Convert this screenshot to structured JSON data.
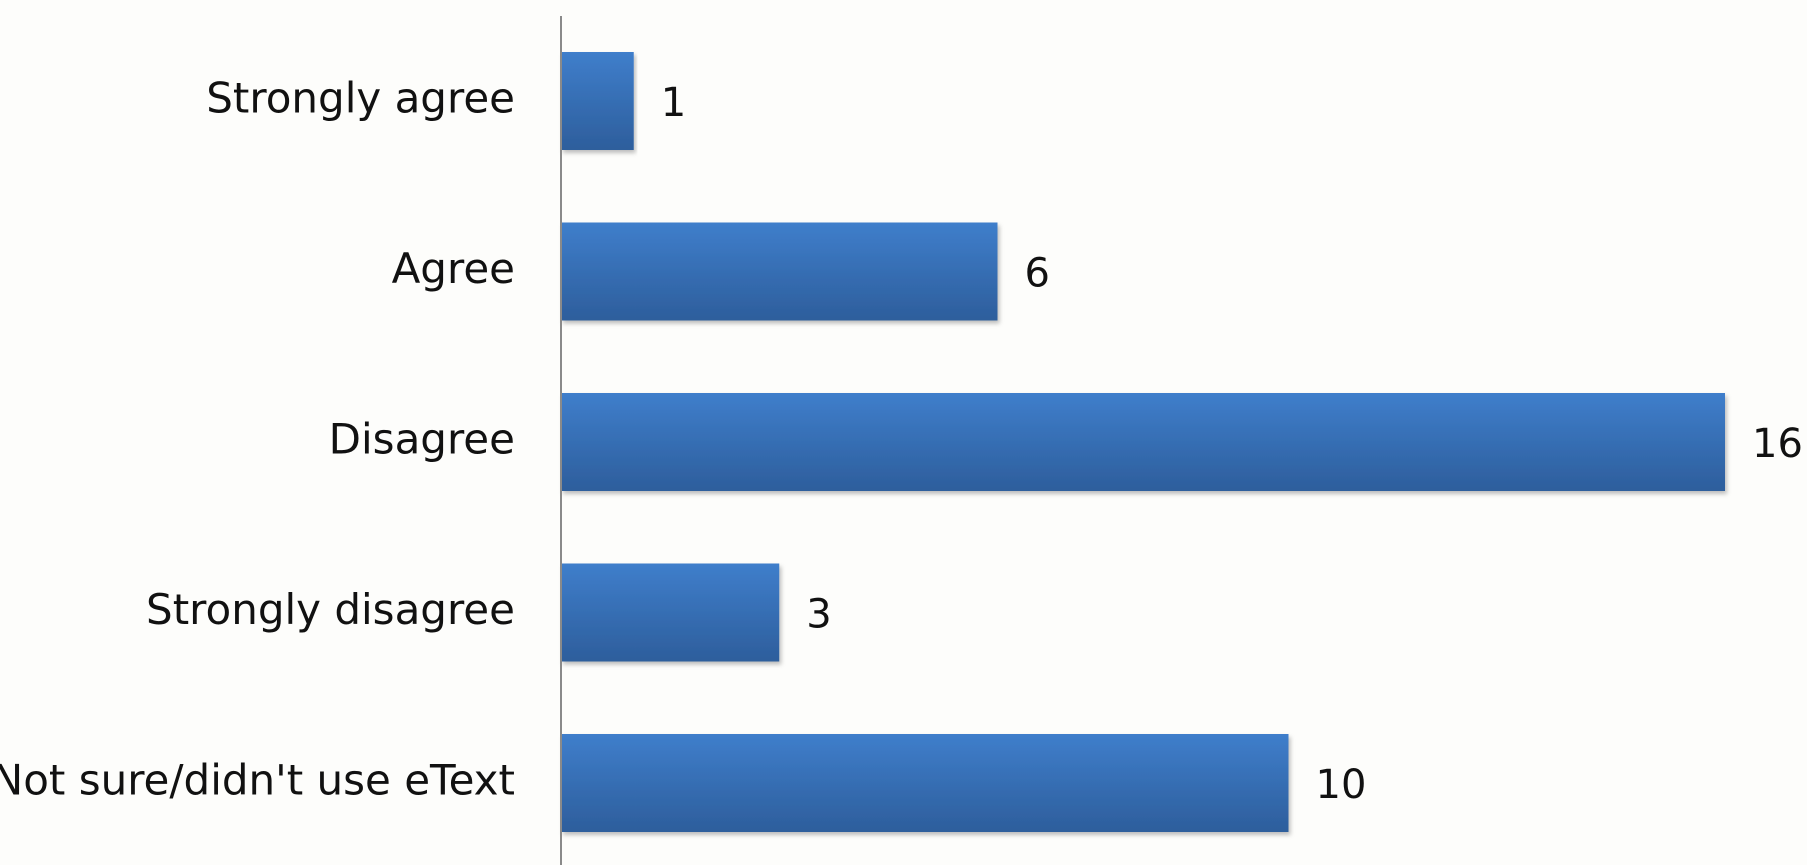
{
  "chart_data": {
    "type": "bar",
    "orientation": "horizontal",
    "categories": [
      "Strongly agree",
      "Agree",
      "Disagree",
      "Strongly disagree",
      "Not sure/didn't use eText"
    ],
    "values": [
      1,
      6,
      16,
      3,
      10
    ],
    "xlim": [
      0,
      16
    ],
    "grid": false,
    "legend": "none",
    "data_labels": true,
    "colors": {
      "bar_top": "#3f7ecb",
      "bar_bottom": "#2d5e9c",
      "axis": "#8a8a8a",
      "background": "#fdfdfb"
    }
  }
}
